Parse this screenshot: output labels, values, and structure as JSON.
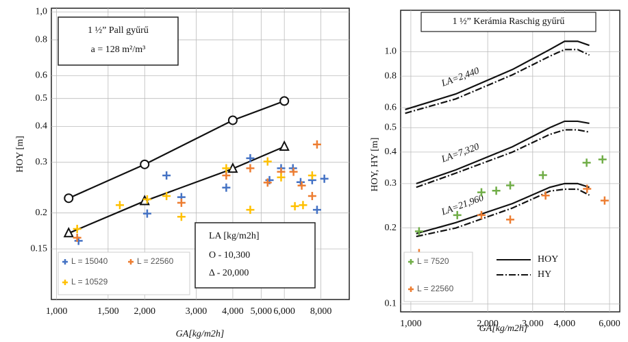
{
  "chart_data": [
    {
      "type": "scatter",
      "xscale": "log",
      "yscale": "log",
      "grid": true,
      "xlabel": "GA[kg/m2h]",
      "ylabel": "HOY [m]",
      "notes": [
        "1 ½” Pall gyűrű",
        "a = 128 m²/m³"
      ],
      "key_title": "LA [kg/m2h]",
      "legend": "lower left",
      "xlim": [
        960,
        10000
      ],
      "ylim": [
        0.1,
        1.03
      ],
      "xticks": [
        {
          "value": 1000,
          "label": "1,000"
        },
        {
          "value": 1500,
          "label": "1,500"
        },
        {
          "value": 2000,
          "label": "2,000"
        },
        {
          "value": 3000,
          "label": "3,000"
        },
        {
          "value": 4000,
          "label": "4,000"
        },
        {
          "value": 5000,
          "label": "5,000"
        },
        {
          "value": 6000,
          "label": "6,000"
        },
        {
          "value": 8000,
          "label": "8,000"
        }
      ],
      "yticks": [
        0.15,
        0.2,
        0.3,
        0.4,
        0.5,
        0.6,
        0.8,
        {
          "value": 1.0,
          "label": "1,0"
        }
      ],
      "series": [
        {
          "name": "O - 10,300",
          "color": "#111111",
          "marker": "circle",
          "line": true,
          "dash": "solid",
          "x": [
            1100,
            2000,
            4000,
            6000
          ],
          "values": [
            0.225,
            0.295,
            0.42,
            0.49
          ]
        },
        {
          "name": "Δ - 20,000",
          "color": "#111111",
          "marker": "triangle",
          "line": true,
          "dash": "solid",
          "x": [
            1100,
            2000,
            4000,
            6000
          ],
          "values": [
            0.17,
            0.22,
            0.285,
            0.34
          ]
        },
        {
          "name": "L = 15040",
          "color": "#4472c4",
          "marker": "plus",
          "x": [
            1189,
            2040,
            2375,
            2670,
            3800,
            4590,
            5340,
            5850,
            6420,
            6820,
            7470,
            7760,
            8220
          ],
          "values": [
            0.16,
            0.199,
            0.27,
            0.227,
            0.245,
            0.31,
            0.26,
            0.286,
            0.286,
            0.256,
            0.26,
            0.205,
            0.263
          ]
        },
        {
          "name": "L = 22560",
          "color": "#ed7d31",
          "marker": "plus",
          "x": [
            1176,
            2670,
            3800,
            4590,
            5260,
            5850,
            6450,
            6880,
            7470,
            7760
          ],
          "values": [
            0.164,
            0.217,
            0.27,
            0.286,
            0.255,
            0.278,
            0.278,
            0.249,
            0.229,
            0.346
          ]
        },
        {
          "name": "L = 10529",
          "color": "#ffc000",
          "marker": "plus",
          "x": [
            1176,
            1645,
            2040,
            2375,
            2670,
            3800,
            4590,
            5260,
            5850,
            6520,
            6950,
            7470
          ],
          "values": [
            0.176,
            0.213,
            0.223,
            0.229,
            0.194,
            0.286,
            0.205,
            0.302,
            0.266,
            0.211,
            0.213,
            0.27
          ]
        }
      ]
    },
    {
      "type": "scatter",
      "xscale": "log",
      "yscale": "log",
      "grid": true,
      "title": "1 ½” Kerámia Raschig gyűrű",
      "xlabel": "GA[kg/m2h]",
      "ylabel": "HOY, HY [m]",
      "legend": "lower left",
      "line_styles": [
        {
          "name": "HOY",
          "dash": "solid"
        },
        {
          "name": "HY",
          "dash": "dash-dot"
        }
      ],
      "xlim": [
        912,
        6580
      ],
      "ylim": [
        0.093,
        1.46
      ],
      "xticks": [
        {
          "value": 1000,
          "label": "1,000"
        },
        {
          "value": 2000,
          "label": "2,000"
        },
        {
          "value": 3000,
          "label": "3,000"
        },
        {
          "value": 4000,
          "label": "4,000"
        },
        {
          "value": 6000,
          "label": "6,000"
        }
      ],
      "yticks": [
        0.1,
        0.2,
        0.3,
        0.4,
        0.5,
        0.6,
        0.8,
        {
          "value": 1,
          "label": "1.0"
        }
      ],
      "series": [
        {
          "label": "LA=2,440",
          "color": "#111111",
          "marker": "none",
          "line": true,
          "dash": "solid",
          "x": [
            950,
            1500,
            2500,
            3500,
            4000,
            4500,
            5000
          ],
          "values": [
            0.59,
            0.68,
            0.85,
            1.02,
            1.1,
            1.1,
            1.06
          ]
        },
        {
          "color": "#111111",
          "marker": "none",
          "line": true,
          "dash": "dash-dot",
          "x": [
            950,
            1500,
            2500,
            3500,
            4000,
            4500,
            5000
          ],
          "values": [
            0.57,
            0.65,
            0.81,
            0.96,
            1.02,
            1.02,
            0.97
          ]
        },
        {
          "label": "LA=7,320",
          "color": "#111111",
          "marker": "none",
          "line": true,
          "dash": "solid",
          "x": [
            1050,
            1500,
            2500,
            3500,
            4000,
            4500,
            5000
          ],
          "values": [
            0.3,
            0.34,
            0.42,
            0.5,
            0.53,
            0.53,
            0.52
          ]
        },
        {
          "color": "#111111",
          "marker": "none",
          "line": true,
          "dash": "dash-dot",
          "x": [
            1050,
            1500,
            2500,
            3500,
            4000,
            4500,
            5000
          ],
          "values": [
            0.29,
            0.33,
            0.4,
            0.47,
            0.49,
            0.49,
            0.48
          ]
        },
        {
          "label": "LA=21,960",
          "color": "#111111",
          "marker": "none",
          "line": true,
          "dash": "solid",
          "x": [
            1050,
            1500,
            2500,
            3500,
            4000,
            4500,
            5000
          ],
          "values": [
            0.19,
            0.21,
            0.25,
            0.29,
            0.3,
            0.3,
            0.29
          ]
        },
        {
          "color": "#111111",
          "marker": "none",
          "line": true,
          "dash": "dash-dot",
          "x": [
            1050,
            1500,
            2500,
            3500,
            4000,
            4500,
            5000
          ],
          "values": [
            0.185,
            0.2,
            0.24,
            0.28,
            0.285,
            0.285,
            0.27
          ]
        },
        {
          "name": "L = 7520",
          "color": "#70ad47",
          "marker": "plus",
          "x": [
            1077,
            1520,
            1890,
            2160,
            2450,
            3290,
            4880,
            5630
          ],
          "values": [
            0.194,
            0.225,
            0.277,
            0.281,
            0.295,
            0.324,
            0.363,
            0.374
          ]
        },
        {
          "name": "L = 22560",
          "color": "#ed7d31",
          "marker": "plus",
          "x": [
            1077,
            1890,
            2450,
            3370,
            4900,
            5740
          ],
          "values": [
            0.159,
            0.225,
            0.216,
            0.269,
            0.286,
            0.257
          ]
        }
      ]
    }
  ]
}
